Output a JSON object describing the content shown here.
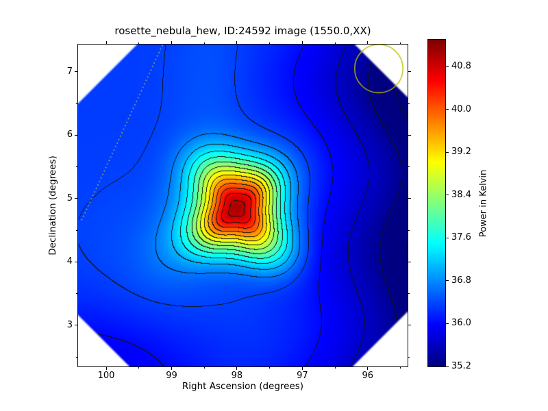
{
  "chart_data": {
    "type": "heatmap",
    "title": "rosette_nebula_hew, ID:24592 image (1550.0,XX)",
    "xlabel": "Right Ascension (degrees)",
    "ylabel": "Declination (degrees)",
    "x_ticks": [
      100,
      99,
      98,
      97,
      96
    ],
    "y_ticks": [
      7,
      6,
      5,
      4,
      3
    ],
    "minor_tick_step": 0.5,
    "x_range": [
      100.43,
      95.39
    ],
    "y_range": [
      2.35,
      7.43
    ],
    "x_axis_reversed": true,
    "grid": false,
    "colormap": "jet",
    "colorbar": {
      "label": "Power in Kelvin",
      "ticks": [
        40.8,
        40.0,
        39.2,
        38.4,
        37.6,
        36.8,
        36.0,
        35.2
      ],
      "vmin": 35.2,
      "vmax": 41.3
    },
    "field": {
      "description": "smooth brightness-temperature map, jet colormap, black contour lines",
      "background_level_K": 36.32,
      "east_side_falloff_to_K": 35.3,
      "peak": {
        "ra": 98.0,
        "dec": 4.85,
        "value_K": 41.0,
        "sigma_deg": 0.5,
        "shape": "rounded-square"
      },
      "contours": {
        "start_K": 36.0,
        "step_K": 0.35,
        "count": 15
      },
      "footprint": "square survey footprint rotated 45 deg; frame corners are blank white"
    },
    "overlays": {
      "beam_circle": {
        "ra": 95.83,
        "dec": 7.05,
        "radius_deg": 0.37,
        "color": "#bfbf00"
      },
      "dotted_line": {
        "from": {
          "ra": 99.14,
          "dec": 7.42
        },
        "to": {
          "ra": 100.38,
          "dec": 4.65
        },
        "color": "#c8c83c"
      }
    }
  }
}
